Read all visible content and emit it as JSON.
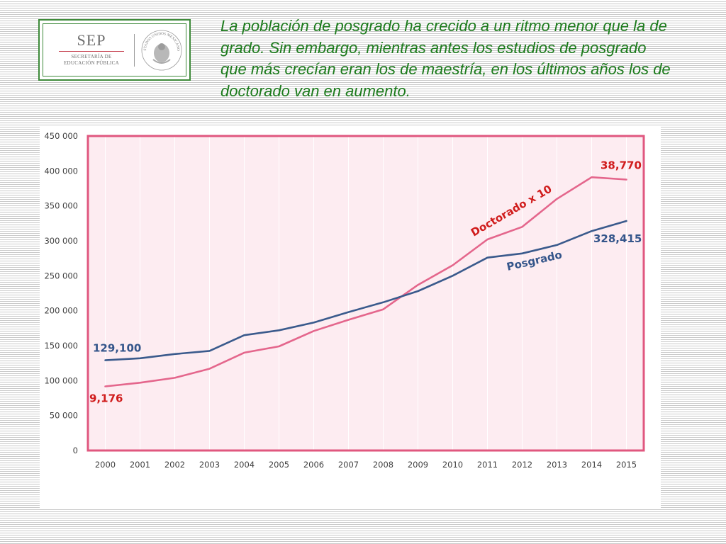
{
  "logo": {
    "name": "SEP",
    "subtitle_line1": "SECRETARÍA DE",
    "subtitle_line2": "EDUCACIÓN PÚBLICA",
    "seal_text": "ESTADOS UNIDOS MEXICANOS"
  },
  "headline": "La población de posgrado ha crecido a un ritmo menor que la de grado. Sin embargo, mientras antes los estudios de posgrado que más crecían eran los de maestría, en los últimos años los de doctorado van en aumento.",
  "colors": {
    "posgrado": "#3a5a8c",
    "doctorado": "#e4668c",
    "plot_border": "#e0577f",
    "plot_fill": "#fdecf1",
    "label_red": "#d01c1c",
    "label_blue": "#34558a",
    "headline": "#1b7a1b"
  },
  "chart_data": {
    "type": "line",
    "x": [
      2000,
      2001,
      2002,
      2003,
      2004,
      2005,
      2006,
      2007,
      2008,
      2009,
      2010,
      2011,
      2012,
      2013,
      2014,
      2015
    ],
    "ylim": [
      0,
      450000
    ],
    "yticks": [
      0,
      50000,
      100000,
      150000,
      200000,
      250000,
      300000,
      350000,
      400000,
      450000
    ],
    "ytick_labels": [
      "0",
      "50 000",
      "100 000",
      "150 000",
      "200 000",
      "250 000",
      "300 000",
      "350 000",
      "400 000",
      "450 000"
    ],
    "grid": "vertical",
    "series": [
      {
        "name": "Posgrado",
        "values": [
          129100,
          132000,
          138000,
          142500,
          165000,
          172000,
          183000,
          198000,
          212000,
          228000,
          250000,
          276000,
          282000,
          294000,
          314000,
          328415
        ],
        "start_label": "129,100",
        "end_label": "328,415"
      },
      {
        "name": "Doctorado x 10",
        "values": [
          91760,
          97000,
          104000,
          117000,
          140000,
          149000,
          171000,
          187000,
          202000,
          237000,
          265000,
          302000,
          320000,
          360000,
          391000,
          387700
        ],
        "start_label": "9,176",
        "end_label": "38,770"
      }
    ]
  }
}
